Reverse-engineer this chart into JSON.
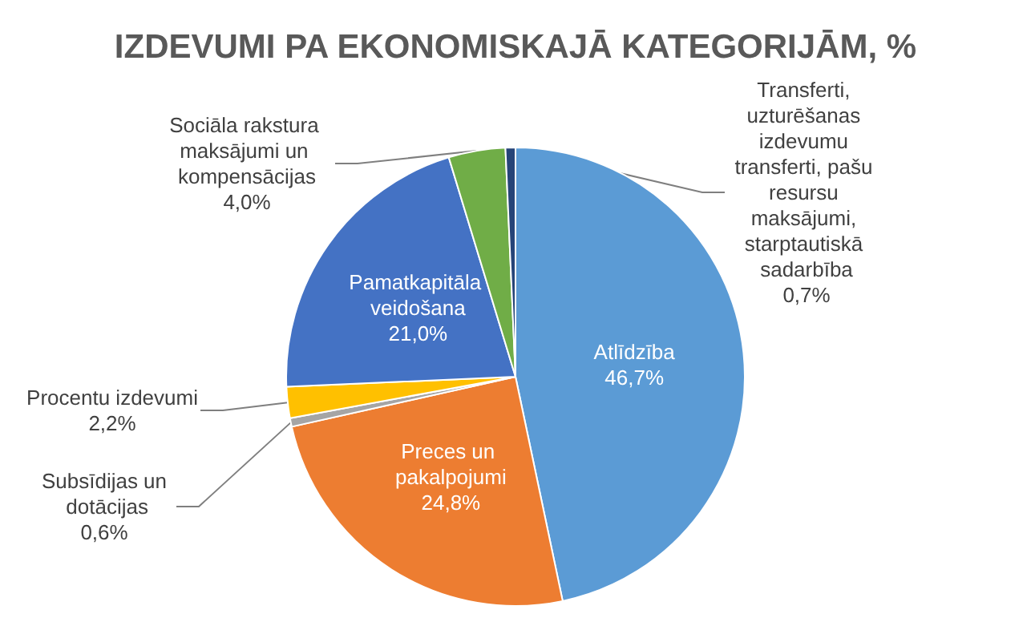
{
  "chart_data": {
    "type": "pie",
    "title": "IZDEVUMI PA EKONOMISKAJĀ KATEGORIJĀM, %",
    "categories": [
      "Atlīdzība",
      "Preces un pakalpojumi",
      "Subsīdijas un dotācijas",
      "Procentu izdevumi",
      "Pamatkapitāla veidošana",
      "Sociāla rakstura maksājumi un kompensācijas",
      "Transferti, uzturēšanas izdevumu transferti, pašu resursu maksājumi, starptautiskā sadarbība"
    ],
    "values": [
      46.7,
      24.8,
      0.6,
      2.2,
      21.0,
      4.0,
      0.7
    ],
    "value_labels": [
      "46,7%",
      "24,8%",
      "0,6%",
      "2,2%",
      "21,0%",
      "4,0%",
      "0,7%"
    ],
    "colors": [
      "#5b9bd5",
      "#ed7d31",
      "#a5a5a5",
      "#ffc000",
      "#4472c4",
      "#70ad47",
      "#264478"
    ]
  }
}
